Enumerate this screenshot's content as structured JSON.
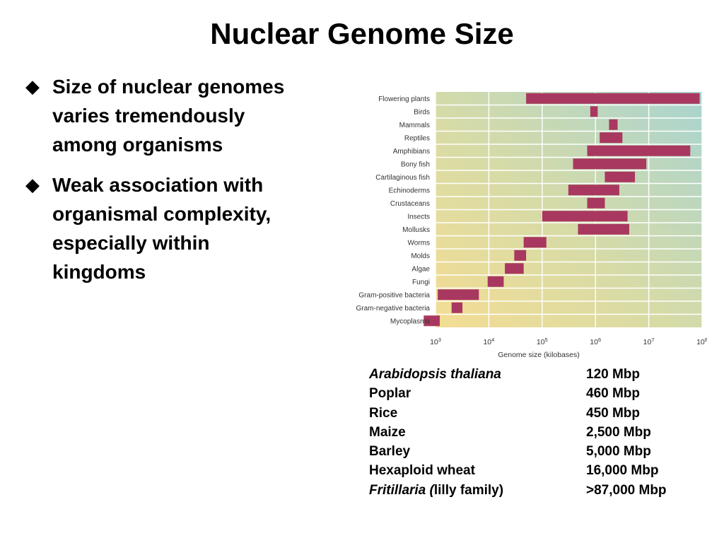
{
  "slide": {
    "title": "Nuclear Genome Size",
    "bullets": [
      {
        "icon": "diamond-bullet-icon",
        "text": "Size of nuclear genomes varies tremendously among organisms"
      },
      {
        "icon": "diamond-bullet-icon",
        "text": "Weak association with organismal complexity, especially within kingdoms"
      }
    ]
  },
  "chart_data": {
    "type": "bar",
    "orientation": "horizontal-range",
    "xlabel": "Genome size (kilobases)",
    "ylabel": "",
    "title": "",
    "xscale": "log",
    "xlim": [
      1000,
      100000000
    ],
    "xticks": [
      {
        "value": 1000,
        "base": "10",
        "exp": "3"
      },
      {
        "value": 10000,
        "base": "10",
        "exp": "4"
      },
      {
        "value": 100000,
        "base": "10",
        "exp": "5"
      },
      {
        "value": 1000000,
        "base": "10",
        "exp": "6"
      },
      {
        "value": 10000000,
        "base": "10",
        "exp": "7"
      },
      {
        "value": 100000000,
        "base": "10",
        "exp": "8"
      }
    ],
    "grid": true,
    "bar_color": "#a8385f",
    "categories": [
      "Flowering plants",
      "Birds",
      "Mammals",
      "Reptiles",
      "Amphibians",
      "Bony fish",
      "Cartilaginous fish",
      "Echinoderms",
      "Crustaceans",
      "Insects",
      "Mollusks",
      "Worms",
      "Molds",
      "Algae",
      "Fungi",
      "Gram-positive bacteria",
      "Gram-negative bacteria",
      "Mycoplasma"
    ],
    "ranges": [
      [
        50000,
        90000000
      ],
      [
        800000,
        1100000
      ],
      [
        1800000,
        2600000
      ],
      [
        1200000,
        3200000
      ],
      [
        700000,
        60000000
      ],
      [
        380000,
        9000000
      ],
      [
        1500000,
        5500000
      ],
      [
        310000,
        2800000
      ],
      [
        700000,
        1500000
      ],
      [
        100000,
        4000000
      ],
      [
        470000,
        4300000
      ],
      [
        45000,
        120000
      ],
      [
        30000,
        50000
      ],
      [
        20000,
        45000
      ],
      [
        9500,
        19000
      ],
      [
        1100,
        6500
      ],
      [
        2000,
        3200
      ],
      [
        600,
        1200
      ]
    ]
  },
  "plant_table": {
    "rows": [
      {
        "name_italic": "Arabidopsis thaliana",
        "name_plain": "",
        "size": "120 Mbp"
      },
      {
        "name_italic": "",
        "name_plain": "Poplar",
        "size": "460 Mbp"
      },
      {
        "name_italic": "",
        "name_plain": "Rice",
        "size": "450 Mbp"
      },
      {
        "name_italic": "",
        "name_plain": "Maize",
        "size": "2,500 Mbp"
      },
      {
        "name_italic": "",
        "name_plain": "Barley",
        "size": "5,000 Mbp"
      },
      {
        "name_italic": "",
        "name_plain": "Hexaploid wheat",
        "size": "16,000 Mbp"
      },
      {
        "name_italic": "Fritillaria (",
        "name_plain": "lilly family)",
        "size": ">87,000 Mbp"
      }
    ]
  }
}
